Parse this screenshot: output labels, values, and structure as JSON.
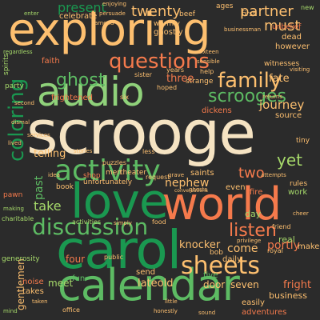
{
  "palette": {
    "background": "#2b2b2b",
    "peach": "#fdbf6f",
    "orange": "#f57a4c",
    "red": "#e3503e",
    "light_green": "#a6d96a",
    "green": "#5dbb63",
    "dark_green": "#1a9850"
  },
  "words": [
    {
      "text": "scrooge",
      "color": "#f5e3c2"
    },
    {
      "text": "exploring",
      "color": "#fdbf6f"
    },
    {
      "text": "carol",
      "color": "#1a9850"
    },
    {
      "text": "calendar",
      "color": "#5dbb63"
    },
    {
      "text": "world",
      "color": "#f57a4c"
    },
    {
      "text": "love",
      "color": "#1a9850"
    },
    {
      "text": "audio",
      "color": "#8fd17a"
    },
    {
      "text": "activity",
      "color": "#5dbb63"
    },
    {
      "text": "discussion",
      "color": "#5dbb63"
    },
    {
      "text": "sheets",
      "color": "#fdbf6f"
    },
    {
      "text": "questions",
      "color": "#f57a4c"
    },
    {
      "text": "family",
      "color": "#fdbf6f"
    },
    {
      "text": "coloring",
      "color": "#1a9850"
    },
    {
      "text": "ghost",
      "color": "#5dbb63"
    },
    {
      "text": "scrooges",
      "color": "#5dbb63"
    },
    {
      "text": "listen",
      "color": "#f57a4c"
    },
    {
      "text": "must",
      "color": "#fdbf6f"
    },
    {
      "text": "partner",
      "color": "#fdbf6f"
    },
    {
      "text": "twenty",
      "color": "#fdbf6f"
    },
    {
      "text": "present",
      "color": "#1a9850"
    },
    {
      "text": "journey",
      "color": "#fdbf6f"
    },
    {
      "text": "fate",
      "color": "#fdbf6f"
    },
    {
      "text": "yet",
      "color": "#a6d96a"
    },
    {
      "text": "two",
      "color": "#f57a4c"
    },
    {
      "text": "nephew",
      "color": "#fdbf6f"
    },
    {
      "text": "take",
      "color": "#a6d96a"
    },
    {
      "text": "knocker",
      "color": "#fdbf6f"
    },
    {
      "text": "come",
      "color": "#fdbf6f"
    },
    {
      "text": "portly",
      "color": "#f57a4c"
    },
    {
      "text": "past",
      "color": "#5dbb63"
    },
    {
      "text": "telling",
      "color": "#fdbf6f"
    },
    {
      "text": "three",
      "color": "#f57a4c"
    },
    {
      "text": "lateold",
      "color": "#fdbf6f"
    },
    {
      "text": "meet",
      "color": "#a6d96a"
    },
    {
      "text": "four",
      "color": "#f57a4c"
    },
    {
      "text": "gentlemen",
      "color": "#fdbf6f"
    },
    {
      "text": "door",
      "color": "#fdbf6f"
    },
    {
      "text": "seven",
      "color": "#fdbf6f"
    },
    {
      "text": "fright",
      "color": "#f57a4c"
    },
    {
      "text": "business",
      "color": "#fdbf6f"
    },
    {
      "text": "celebrate",
      "color": "#fdbf6f"
    },
    {
      "text": "faith",
      "color": "#f57a4c"
    },
    {
      "text": "frightened",
      "color": "#f57a4c"
    },
    {
      "text": "ghostly",
      "color": "#fdbf6f"
    },
    {
      "text": "dead",
      "color": "#fdbf6f"
    },
    {
      "text": "however",
      "color": "#fdbf6f"
    },
    {
      "text": "witnesses",
      "color": "#fdbf6f"
    },
    {
      "text": "source",
      "color": "#fdbf6f"
    },
    {
      "text": "strange",
      "color": "#fdbf6f"
    },
    {
      "text": "saints",
      "color": "#fdbf6f"
    },
    {
      "text": "work",
      "color": "#a6d96a"
    },
    {
      "text": "fire",
      "color": "#f57a4c"
    },
    {
      "text": "even",
      "color": "#fdbf6f"
    },
    {
      "text": "day",
      "color": "#a6d96a"
    },
    {
      "text": "real",
      "color": "#a6d96a"
    },
    {
      "text": "make",
      "color": "#fdbf6f"
    },
    {
      "text": "daily",
      "color": "#fdbf6f"
    },
    {
      "text": "five",
      "color": "#5dbb63"
    },
    {
      "text": "send",
      "color": "#fdbf6f"
    },
    {
      "text": "fun",
      "color": "#5dbb63"
    },
    {
      "text": "noise",
      "color": "#f57a4c"
    },
    {
      "text": "takes",
      "color": "#fdbf6f"
    },
    {
      "text": "easily",
      "color": "#fdbf6f"
    },
    {
      "text": "adventures",
      "color": "#f57a4c"
    },
    {
      "text": "spirits",
      "color": "#a6d96a"
    },
    {
      "text": "party",
      "color": "#a6d96a"
    },
    {
      "text": "shop",
      "color": "#f57a4c"
    },
    {
      "text": "book",
      "color": "#fdbf6f"
    },
    {
      "text": "pawn",
      "color": "#f57a4c"
    },
    {
      "text": "beef",
      "color": "#fdbf6f"
    },
    {
      "text": "warmly",
      "color": "#fdbf6f"
    },
    {
      "text": "ages",
      "color": "#fdbf6f"
    },
    {
      "text": "first",
      "color": "#fdbf6f"
    },
    {
      "text": "unbelief",
      "color": "#f57a4c"
    },
    {
      "text": "men",
      "color": "#fdbf6f"
    },
    {
      "text": "theater",
      "color": "#fdbf6f"
    },
    {
      "text": "dickens",
      "color": "#f57a4c"
    },
    {
      "text": "unfortunately",
      "color": "#fdbf6f"
    },
    {
      "text": "rules",
      "color": "#fdbf6f"
    },
    {
      "text": "bob",
      "color": "#fdbf6f"
    },
    {
      "text": "tiny",
      "color": "#fdbf6f"
    },
    {
      "text": "generosity",
      "color": "#a6d96a"
    },
    {
      "text": "charitable",
      "color": "#a6d96a"
    },
    {
      "text": "office",
      "color": "#fdbf6f"
    },
    {
      "text": "public",
      "color": "#fdbf6f"
    },
    {
      "text": "food",
      "color": "#fdbf6f"
    },
    {
      "text": "request",
      "color": "#fdbf6f"
    },
    {
      "text": "friend",
      "color": "#fdbf6f"
    },
    {
      "text": "royal",
      "color": "#fdbf6f"
    },
    {
      "text": "hoped",
      "color": "#fdbf6f"
    },
    {
      "text": "puzzles",
      "color": "#fdbf6f"
    },
    {
      "text": "less",
      "color": "#fdbf6f"
    },
    {
      "text": "years",
      "color": "#fdbf6f"
    },
    {
      "text": "six",
      "color": "#fdbf6f"
    },
    {
      "text": "help",
      "color": "#fdbf6f"
    },
    {
      "text": "sister",
      "color": "#fdbf6f"
    },
    {
      "text": "enjoying",
      "color": "#fdbf6f"
    },
    {
      "text": "sixteen",
      "color": "#fdbf6f"
    },
    {
      "text": "businessman",
      "color": "#fdbf6f"
    },
    {
      "text": "returns",
      "color": "#fdbf6f"
    },
    {
      "text": "second",
      "color": "#fdbf6f"
    },
    {
      "text": "regardless",
      "color": "#a6d96a"
    },
    {
      "text": "activities",
      "color": "#a6d96a"
    },
    {
      "text": "idea",
      "color": "#fdbf6f"
    },
    {
      "text": "grave",
      "color": "#fdbf6f"
    },
    {
      "text": "stories",
      "color": "#fdbf6f"
    },
    {
      "text": "services",
      "color": "#fdbf6f"
    },
    {
      "text": "lived",
      "color": "#fdbf6f"
    },
    {
      "text": "dismal",
      "color": "#fdbf6f"
    },
    {
      "text": "making",
      "color": "#a6d96a"
    },
    {
      "text": "simply",
      "color": "#fdbf6f"
    },
    {
      "text": "ghosts",
      "color": "#fdbf6f"
    },
    {
      "text": "privilege",
      "color": "#fdbf6f"
    },
    {
      "text": "cheer",
      "color": "#fdbf6f"
    },
    {
      "text": "new",
      "color": "#a6d96a"
    },
    {
      "text": "visiting",
      "color": "#fdbf6f"
    },
    {
      "text": "attempts",
      "color": "#fdbf6f"
    },
    {
      "text": "conversations",
      "color": "#fdbf6f"
    },
    {
      "text": "enter",
      "color": "#a6d96a"
    },
    {
      "text": "persuade",
      "color": "#fdbf6f"
    },
    {
      "text": "amend",
      "color": "#fdbf6f"
    },
    {
      "text": "sensible",
      "color": "#fdbf6f"
    },
    {
      "text": "mind",
      "color": "#a6d96a"
    },
    {
      "text": "honestly",
      "color": "#fdbf6f"
    },
    {
      "text": "taken",
      "color": "#fdbf6f"
    },
    {
      "text": "little",
      "color": "#fdbf6f"
    },
    {
      "text": "sound",
      "color": "#fdbf6f"
    }
  ]
}
